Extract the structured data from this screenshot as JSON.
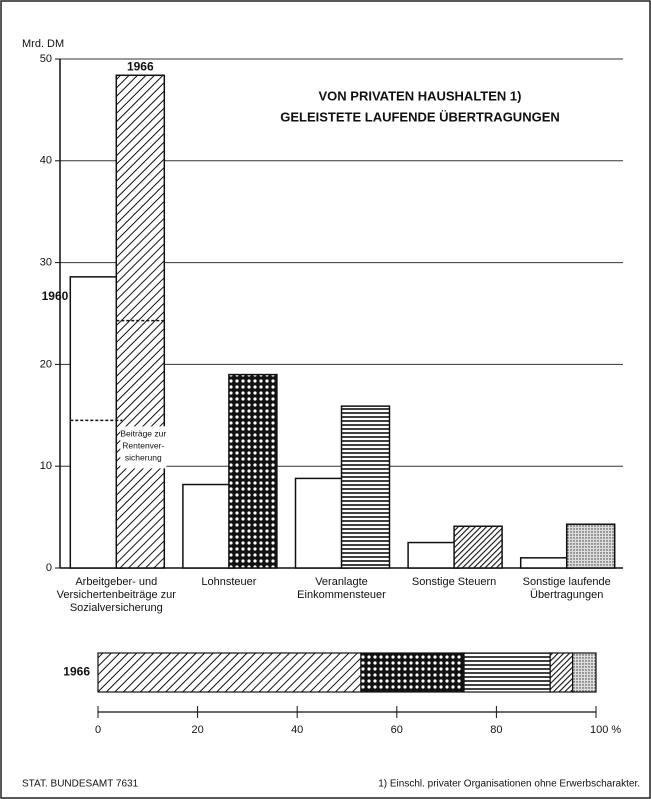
{
  "chart_data": {
    "type": "bar",
    "title": "VON PRIVATEN HAUSHALTEN 1)",
    "subtitle": "GELEISTETE LAUFENDE ÜBERTRAGUNGEN",
    "y_label": "Mrd. DM",
    "categories": [
      "Arbeitgeber- und\nVersichertenbeiträge zur\nSozialversicherung",
      "Lohnsteuer",
      "Veranlagte\nEinkommensteuer",
      "Sonstige Steuern",
      "Sonstige laufende\nÜbertragungen"
    ],
    "series": [
      {
        "name": "1960",
        "color": "#ffffff",
        "values": [
          28.6,
          8.2,
          8.8,
          2.5,
          1.0
        ]
      },
      {
        "name": "1966",
        "color": "#111111",
        "values": [
          48.4,
          19.0,
          15.9,
          4.1,
          4.3
        ]
      }
    ],
    "ylim": [
      0,
      50
    ],
    "yticks": [
      0,
      10,
      20,
      30,
      40,
      50
    ],
    "grid": true,
    "annotation": {
      "label": "Beiträge zur\nRentenver-\nsicherung",
      "values": [
        14.5,
        24.3
      ]
    },
    "share": {
      "label": "1966",
      "values": [
        52.8,
        20.7,
        17.3,
        4.5,
        4.7
      ],
      "xlim": [
        0,
        100
      ],
      "xticks": [
        0,
        20,
        40,
        60,
        80,
        {
          "value": 100,
          "label": "100 %"
        }
      ]
    },
    "footnote": "1) Einschl. privater Organisationen ohne Erwerbscharakter.",
    "source": "STAT. BUNDESAMT 7631"
  }
}
